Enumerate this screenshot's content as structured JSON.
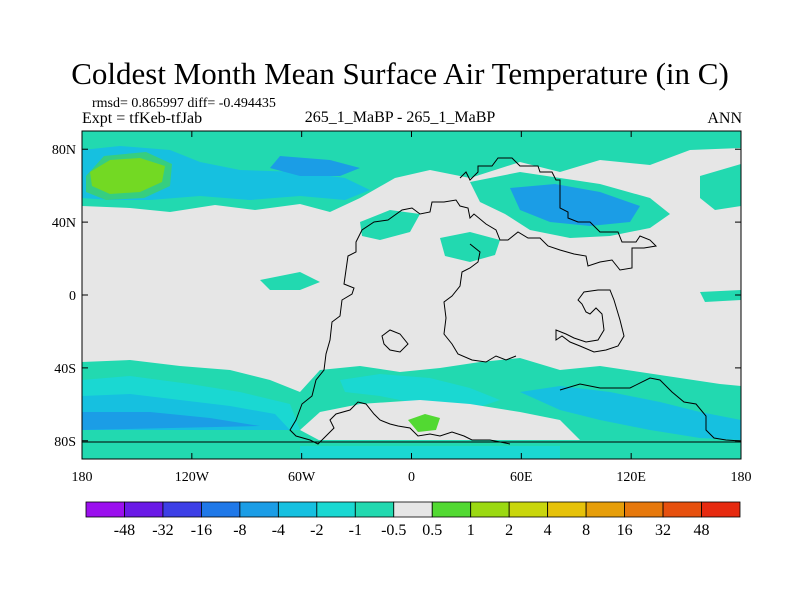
{
  "header": {
    "title": "Coldest Month Mean Surface Air Temperature (in C)",
    "stats": "rmsd= 0.865997 diff= -0.494435",
    "expt": "Expt = tfKeb-tfJab",
    "subtitle": "265_1_MaBP - 265_1_MaBP",
    "season": "ANN"
  },
  "axes": {
    "lat_ticks": [
      {
        "value": 80,
        "label": "80N"
      },
      {
        "value": 40,
        "label": "40N"
      },
      {
        "value": 0,
        "label": "0"
      },
      {
        "value": -40,
        "label": "40S"
      },
      {
        "value": -80,
        "label": "80S"
      }
    ],
    "lon_ticks": [
      {
        "value": -180,
        "label": "180"
      },
      {
        "value": -120,
        "label": "120W"
      },
      {
        "value": -60,
        "label": "60W"
      },
      {
        "value": 0,
        "label": "0"
      },
      {
        "value": 60,
        "label": "60E"
      },
      {
        "value": 120,
        "label": "120E"
      },
      {
        "value": 180,
        "label": "180"
      }
    ],
    "lon_range": [
      -180,
      180
    ],
    "lat_range": [
      -90,
      90
    ]
  },
  "colorbar": {
    "labels": [
      "-48",
      "-32",
      "-16",
      "-8",
      "-4",
      "-2",
      "-1",
      "-0.5",
      "0.5",
      "1",
      "2",
      "4",
      "8",
      "16",
      "32",
      "48"
    ],
    "colors": [
      "#9b10ee",
      "#6a1ae6",
      "#3d3fe6",
      "#1f78e8",
      "#1b9de6",
      "#16c0e0",
      "#1ad8d2",
      "#22d9b0",
      "#e6e6e6",
      "#52d932",
      "#9bd912",
      "#c9d60c",
      "#e6c20a",
      "#e69e0a",
      "#e6780c",
      "#e6500e",
      "#e62a10"
    ]
  },
  "map_colors": {
    "neutral": "#e6e6e6",
    "light_cyan": "#22d9b0",
    "cyan": "#1ad8d2",
    "mid_cyan": "#16c0e0",
    "blue": "#1b9de6",
    "deep_blue": "#1f78e8",
    "green": "#52d932",
    "yellow_green": "#9bd912"
  }
}
